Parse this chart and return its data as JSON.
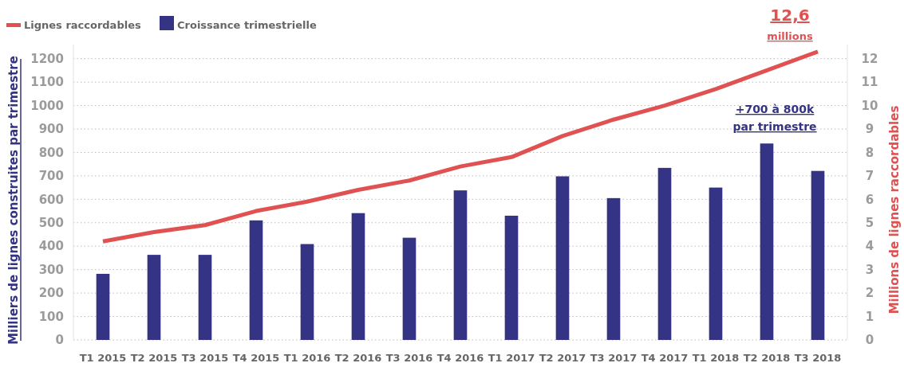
{
  "chart_data": {
    "type": "bar",
    "categories": [
      "T1 2015",
      "T2 2015",
      "T3 2015",
      "T4 2015",
      "T1 2016",
      "T2 2016",
      "T3 2016",
      "T4 2016",
      "T1 2017",
      "T2 2017",
      "T3 2017",
      "T4 2017",
      "T1 2018",
      "T2 2018",
      "T3 2018"
    ],
    "series": [
      {
        "name": "Lignes raccordables",
        "type": "line",
        "axis": "y2",
        "color": "#e05252",
        "values": [
          4.2,
          4.6,
          4.9,
          5.5,
          5.9,
          6.4,
          6.8,
          7.4,
          7.8,
          8.7,
          9.4,
          10.0,
          10.7,
          11.5,
          12.3
        ]
      },
      {
        "name": "Croissance trimestrielle",
        "color": "#343384",
        "values": [
          282,
          363,
          363,
          510,
          409,
          541,
          436,
          638,
          530,
          698,
          605,
          734,
          650,
          838,
          721
        ]
      }
    ],
    "ylabel": "Milliers de lignes construites par trimestre",
    "y2label": "Millions de lignes raccordables",
    "ylim": [
      0,
      1260
    ],
    "yticks": [
      0,
      100,
      200,
      300,
      400,
      500,
      600,
      700,
      800,
      900,
      1000,
      1100,
      1200
    ],
    "y2lim": [
      0,
      12.6
    ],
    "y2ticks": [
      0,
      1,
      2,
      3,
      4,
      5,
      6,
      7,
      8,
      9,
      10,
      11,
      12
    ],
    "annotations": [
      "12,6",
      "millions",
      "+700 à 800k",
      "par trimestre"
    ],
    "grid": "y",
    "legend": "top left",
    "line_style": "solid",
    "marker": "none"
  }
}
